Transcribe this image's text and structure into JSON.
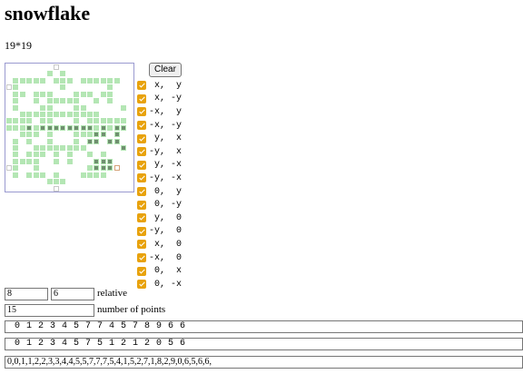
{
  "title": "snowflake",
  "size_label": "19*19",
  "grid": {
    "rows": [
      "0000000300000000000",
      "0000001010000000000",
      "0111110111011111100",
      "3100000010000001000",
      "0110111000111011000",
      "0100101111100101000",
      "0100011000110000010",
      "0011111111111100000",
      "1111011000101111110",
      "1112122222222121220",
      "0011101000111220200",
      "0101001000102202200",
      "0100111111110000020",
      "0101110101001010000",
      "0111100101000222000",
      "3100100000001222400",
      "0101110100011110000",
      "0000001110000000000",
      "0000000300000000000"
    ]
  },
  "clear_button": "Clear",
  "symmetries": [
    {
      "label": " x,  y",
      "checked": true
    },
    {
      "label": " x, -y",
      "checked": true
    },
    {
      "label": "-x,  y",
      "checked": true
    },
    {
      "label": "-x, -y",
      "checked": true
    },
    {
      "label": " y,  x",
      "checked": true
    },
    {
      "label": "-y,  x",
      "checked": true
    },
    {
      "label": " y, -x",
      "checked": true
    },
    {
      "label": "-y, -x",
      "checked": true
    },
    {
      "label": " 0,  y",
      "checked": true
    },
    {
      "label": " 0, -y",
      "checked": true
    },
    {
      "label": " y,  0",
      "checked": true
    },
    {
      "label": "-y,  0",
      "checked": true
    },
    {
      "label": " x,  0",
      "checked": true
    },
    {
      "label": "-x,  0",
      "checked": true
    },
    {
      "label": " 0,  x",
      "checked": true
    },
    {
      "label": " 0, -x",
      "checked": true
    }
  ],
  "relative": {
    "x": "8",
    "y": "6",
    "label": "relative"
  },
  "points": {
    "value": "15",
    "label": "number of points"
  },
  "output_row1": "0 1 2 3 4 5 7 7 4 5 7 8 9 6 6",
  "output_row2": "0 1 2 3 4 5 7 5 1 2 1 2 0 5 6",
  "output_coords": "0,0,1,1,2,2,3,3,4,4,5,5,7,7,7,5,4,1,5,2,7,1,8,2,9,0,6,5,6,6,"
}
